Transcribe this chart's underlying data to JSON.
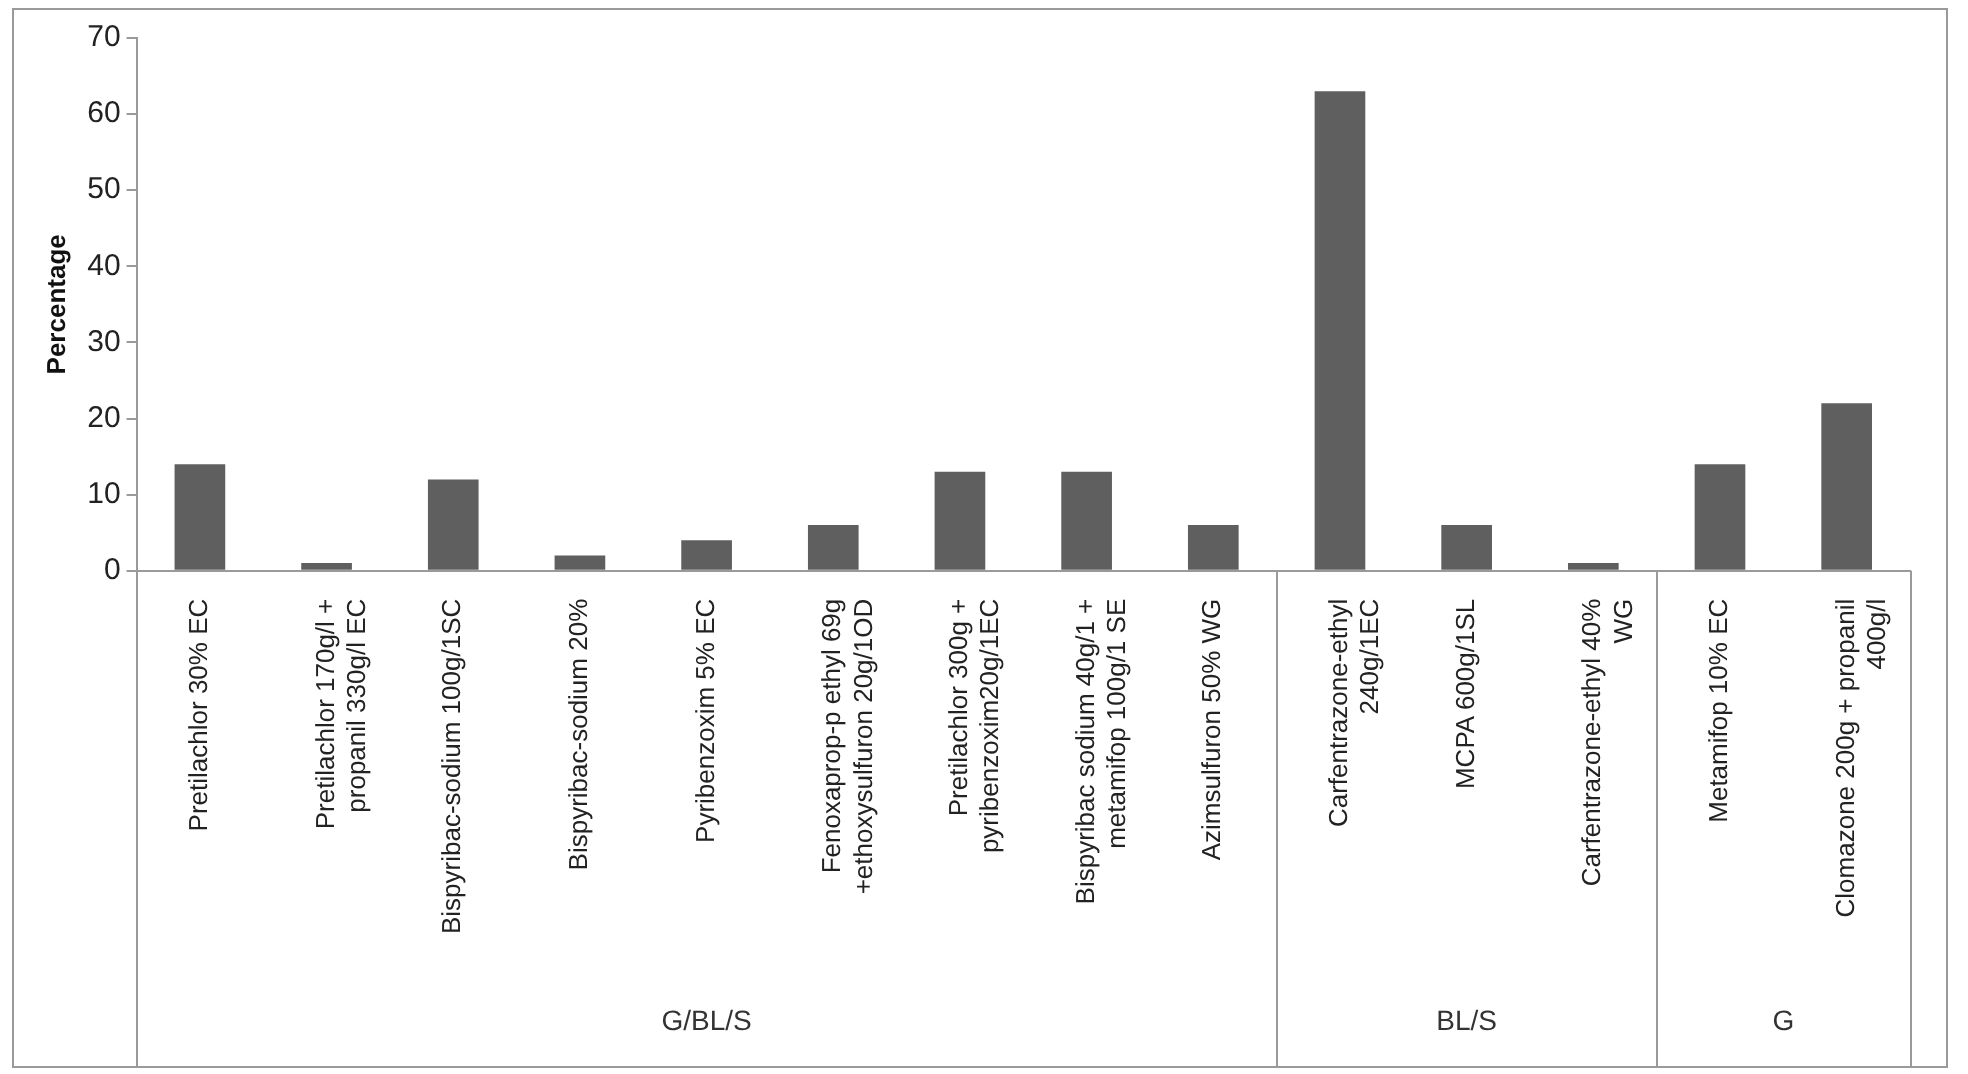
{
  "chart_data": {
    "type": "bar",
    "ylabel": "Percentage",
    "categories": [
      "Pretilachlor 30% EC",
      "Pretilachlor 170g/l +\npropanil 330g/l EC",
      "Bispyribac-sodium 100g/1SC",
      "Bispyribac-sodium 20%",
      "Pyribenzoxim 5% EC",
      "Fenoxaprop-p ethyl 69g\n+ethoxysulfuron 20g/1OD",
      "Pretilachlor 300g +\npyribenzoxim20g/1EC",
      "Bispyribac sodium 40g/1 +\nmetamifop 100g/1 SE",
      "Azimsulfuron 50% WG",
      "Carfentrazone-ethyl\n240g/1EC",
      "MCPA 600g/1SL",
      "Carfentrazone-ethyl 40%\nWG",
      "Metamifop 10% EC",
      "Clomazone 200g + propanil\n400g/l"
    ],
    "values": [
      14,
      1,
      12,
      2,
      4,
      6,
      13,
      13,
      6,
      63,
      6,
      1,
      14,
      22
    ],
    "color": "#5f5f5f",
    "ylim": [
      0,
      70
    ],
    "yticks": [
      0,
      10,
      20,
      30,
      40,
      50,
      60,
      70
    ],
    "annotations": [
      "G/BL/S",
      "BL/S",
      "G"
    ]
  }
}
